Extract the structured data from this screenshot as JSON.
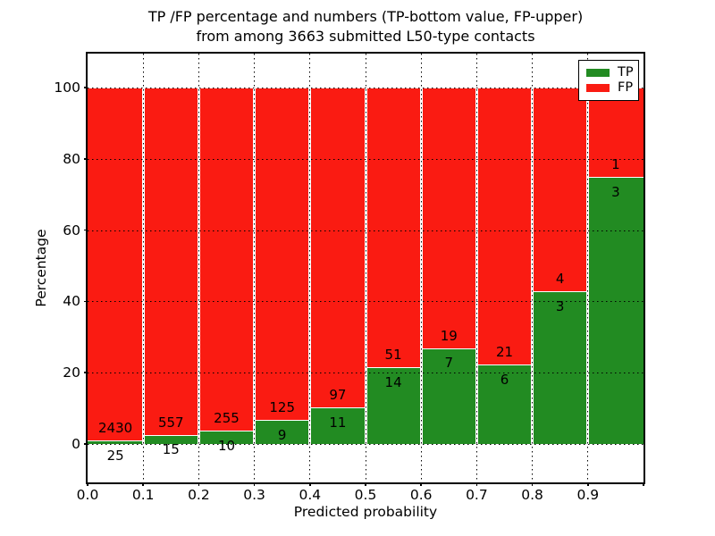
{
  "title_line1": "TP /FP percentage and numbers (TP-bottom value, FP-upper)",
  "title_line2": "from among 3663 submitted L50-type contacts",
  "axes": {
    "xlabel": "Predicted probability",
    "ylabel": "Percentage",
    "ytick_labels": [
      "0",
      "20",
      "40",
      "60",
      "80",
      "100"
    ],
    "ytick_values": [
      0,
      20,
      40,
      60,
      80,
      100
    ],
    "xtick_labels": [
      "0.0",
      "0.1",
      "0.2",
      "0.3",
      "0.4",
      "0.5",
      "0.6",
      "0.7",
      "0.8",
      "0.9"
    ]
  },
  "legend": {
    "items": [
      {
        "label": "TP",
        "color": "#228b22"
      },
      {
        "label": "FP",
        "color": "#fa1b12"
      }
    ]
  },
  "chart_data": {
    "type": "bar",
    "stacked": true,
    "title": "TP /FP percentage and numbers (TP-bottom value, FP-upper) from among 3663 submitted L50-type contacts",
    "xlabel": "Predicted probability",
    "ylabel": "Percentage",
    "total_submitted": 3663,
    "bin_start": [
      0.0,
      0.1,
      0.2,
      0.3,
      0.4,
      0.5,
      0.6,
      0.7,
      0.8,
      0.9
    ],
    "bin_width": 0.1,
    "series": [
      {
        "name": "TP",
        "color": "#228b22",
        "counts": [
          25,
          15,
          10,
          9,
          11,
          14,
          7,
          6,
          3,
          3
        ],
        "percent": [
          1.02,
          2.62,
          3.77,
          6.72,
          10.19,
          21.54,
          26.92,
          22.22,
          42.86,
          75.0
        ]
      },
      {
        "name": "FP",
        "color": "#fa1b12",
        "counts": [
          2430,
          557,
          255,
          125,
          97,
          51,
          19,
          21,
          4,
          1
        ],
        "percent": [
          98.98,
          97.38,
          96.23,
          93.28,
          89.81,
          78.46,
          73.08,
          77.78,
          57.14,
          25.0
        ]
      }
    ],
    "xlim": [
      0.0,
      1.0
    ],
    "ylim": [
      -10.9,
      109.4
    ],
    "yticks": [
      0,
      20,
      40,
      60,
      80,
      100
    ],
    "xticks": [
      0.0,
      0.1,
      0.2,
      0.3,
      0.4,
      0.5,
      0.6,
      0.7,
      0.8,
      0.9
    ],
    "grid": true,
    "legend_position": "upper right"
  }
}
